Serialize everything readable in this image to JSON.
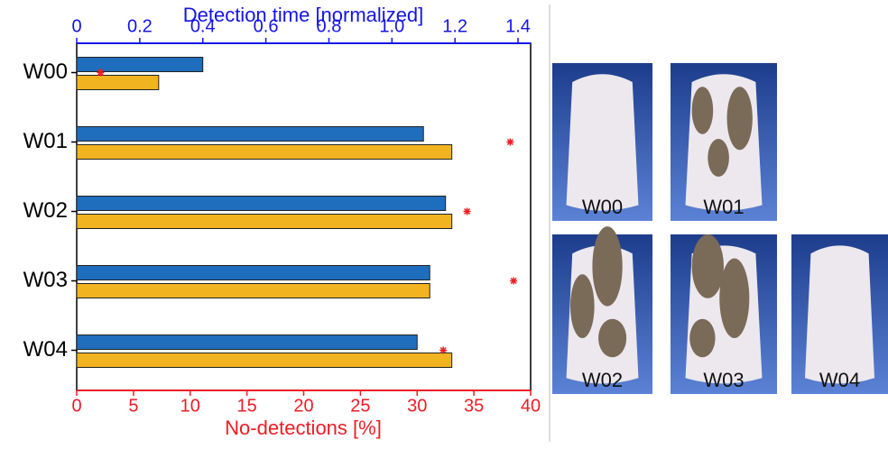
{
  "chart_data": {
    "type": "bar",
    "orientation": "horizontal",
    "categories": [
      "W00",
      "W01",
      "W02",
      "W03",
      "W04"
    ],
    "x2label": "Detection time [normalized]",
    "x2color": "#1414e6",
    "x2lim": [
      0,
      1.44
    ],
    "x2ticks": [
      0,
      0.2,
      0.4,
      0.6,
      0.8,
      {
        "value": 1,
        "label": "1.0"
      },
      1.2,
      1.4
    ],
    "xlabel": "No-detections [%]",
    "xcolor": "#ee1c25",
    "xlim": [
      0,
      40
    ],
    "xticks": [
      0,
      5,
      10,
      15,
      20,
      25,
      30,
      35,
      40
    ],
    "series": [
      {
        "color": "#1f6dbd",
        "values": [
          0.4,
          1.1,
          1.17,
          1.12,
          1.08
        ],
        "axis": "x2"
      },
      {
        "color": "#f2b320",
        "values": [
          0.26,
          1.19,
          1.19,
          1.12,
          1.19
        ],
        "axis": "x2"
      },
      {
        "type": "scatter",
        "marker": "star",
        "color": "#ee1c25",
        "values": [
          2.1,
          38.2,
          34.4,
          38.5,
          32.3
        ],
        "axis": "x"
      }
    ]
  },
  "photos": [
    {
      "label": "W00"
    },
    {
      "label": "W01"
    },
    {
      "label": "W02"
    },
    {
      "label": "W03"
    },
    {
      "label": "W04"
    }
  ]
}
